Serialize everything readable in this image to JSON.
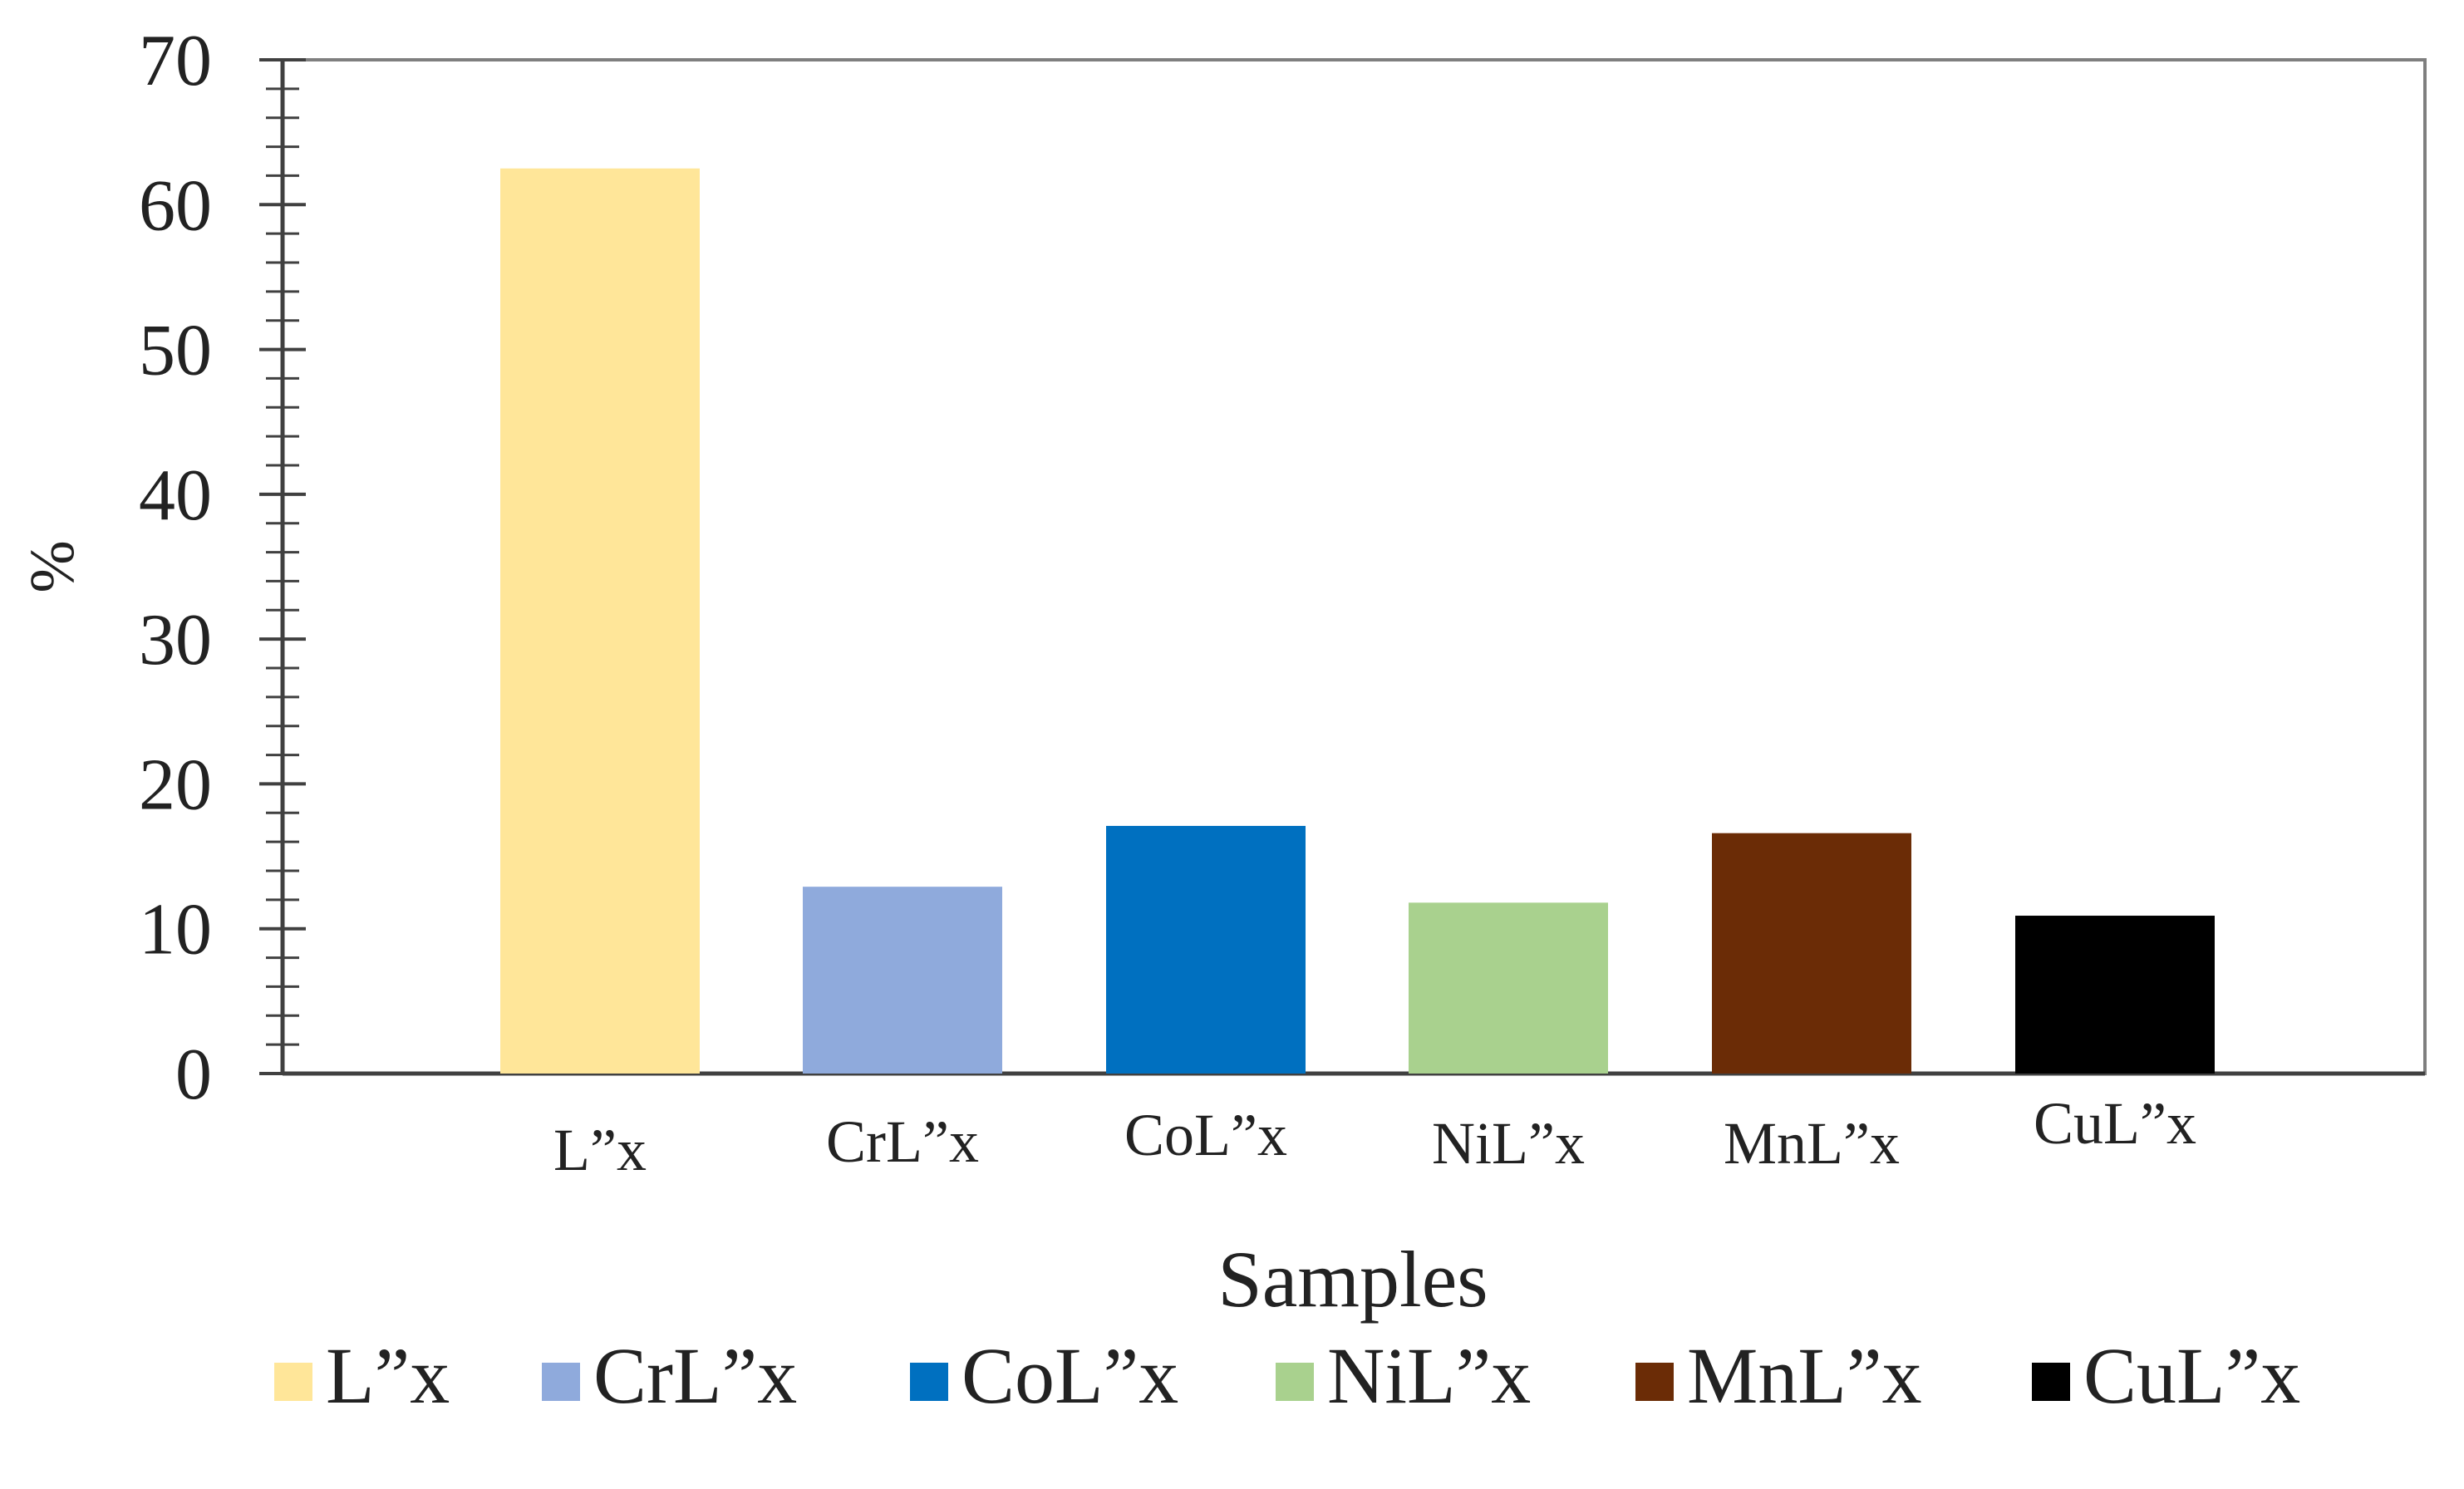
{
  "chart_data": {
    "type": "bar",
    "categories": [
      "L”x",
      "CrL”x",
      "CoL”x",
      "NiL”x",
      "MnL”x",
      "CuL”x"
    ],
    "values": [
      62.5,
      12.9,
      17.1,
      11.8,
      16.6,
      10.9
    ],
    "colors": [
      "#FFE699",
      "#8FAADC",
      "#0070C0",
      "#A9D18E",
      "#6B2C06",
      "#000000"
    ],
    "title": "",
    "xlabel": "Samples",
    "ylabel": "%",
    "ylim": [
      0,
      70
    ],
    "yticks": [
      0,
      10,
      20,
      30,
      40,
      50,
      60,
      70
    ],
    "ytick_labels": [
      "0",
      "10",
      "20",
      "30",
      "40",
      "50",
      "60",
      "70"
    ],
    "minor_tick_step": 2,
    "grid": false,
    "legend_position": "bottom",
    "legend": [
      {
        "label": "L”x",
        "color": "#FFE699"
      },
      {
        "label": "CrL”x",
        "color": "#8FAADC"
      },
      {
        "label": "CoL”x",
        "color": "#0070C0"
      },
      {
        "label": "NiL”x",
        "color": "#A9D18E"
      },
      {
        "label": "MnL”x",
        "color": "#6B2C06"
      },
      {
        "label": "CuL”x",
        "color": "#000000"
      }
    ]
  }
}
